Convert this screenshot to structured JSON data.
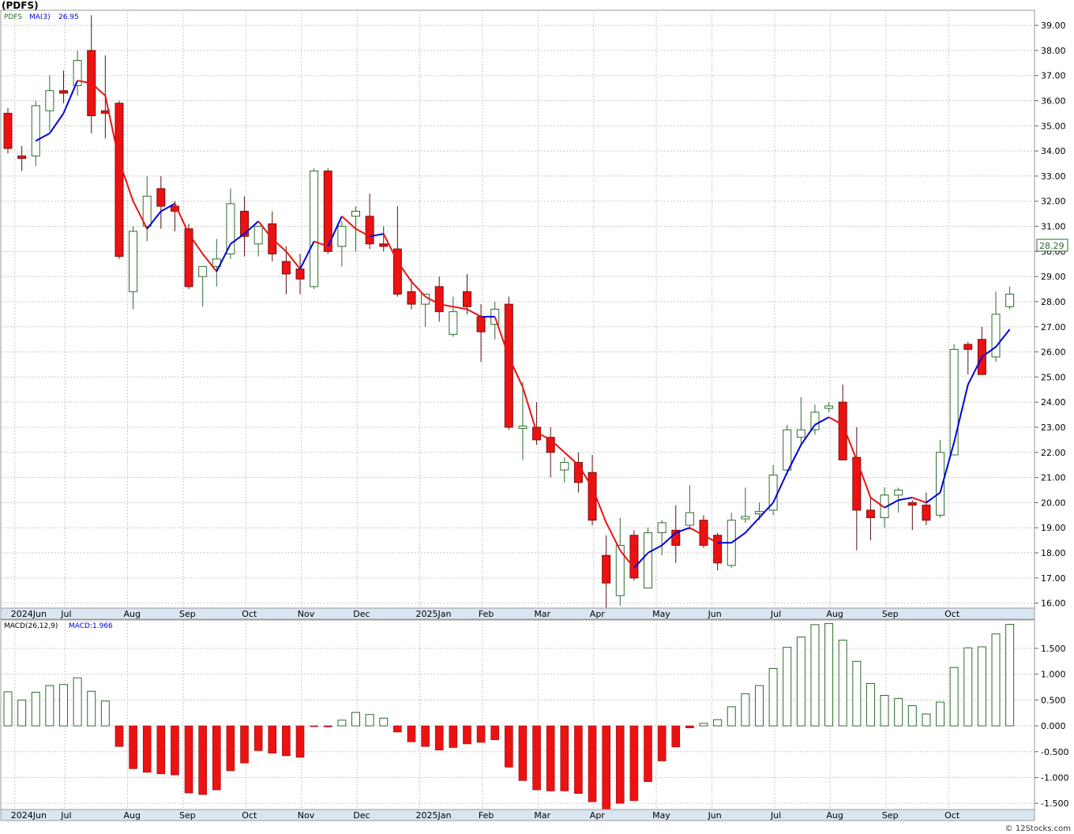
{
  "header": {
    "symbol_title": "(PDFS)",
    "legend_symbol": "PDFS",
    "legend_ma_label": "MA(3)",
    "legend_ma_value": "26.95",
    "last_price_label": "28.29",
    "macd_label": "MACD(26,12,9)",
    "macd_value_label": "MACD:1.966",
    "credit": "© 12Stocks.com"
  },
  "colors": {
    "up_candle_fill": "#ffffff",
    "up_candle_stroke": "#2e6b2e",
    "down_candle_fill": "#ee1111",
    "ma_up_color": "#0000dd",
    "ma_down_color": "#ee1111",
    "macd_pos_stroke": "#2e6b2e",
    "macd_neg_fill": "#ee1111",
    "grid": "#c8c8c8"
  },
  "chart_data": [
    {
      "type": "candlestick",
      "title": "(PDFS)",
      "interval": "weekly",
      "ylim": [
        15.8,
        39.6
      ],
      "y_ticks": [
        "16.00",
        "17.00",
        "18.00",
        "19.00",
        "20.00",
        "21.00",
        "22.00",
        "23.00",
        "24.00",
        "25.00",
        "26.00",
        "27.00",
        "28.00",
        "29.00",
        "30.00",
        "31.00",
        "32.00",
        "33.00",
        "34.00",
        "35.00",
        "36.00",
        "37.00",
        "38.00",
        "39.00"
      ],
      "x_labels": [
        {
          "label": "2024Jun",
          "week": 0.5
        },
        {
          "label": "Jul",
          "week": 4.1
        },
        {
          "label": "Aug",
          "week": 8.6
        },
        {
          "label": "Sep",
          "week": 12.6
        },
        {
          "label": "Oct",
          "week": 17.1
        },
        {
          "label": "Nov",
          "week": 21.1
        },
        {
          "label": "Dec",
          "week": 25.1
        },
        {
          "label": "2025Jan",
          "week": 29.6
        },
        {
          "label": "Feb",
          "week": 34.1
        },
        {
          "label": "Mar",
          "week": 38.1
        },
        {
          "label": "Apr",
          "week": 42.1
        },
        {
          "label": "May",
          "week": 46.6
        },
        {
          "label": "Jun",
          "week": 50.6
        },
        {
          "label": "Jul",
          "week": 55.1
        },
        {
          "label": "Aug",
          "week": 59.1
        },
        {
          "label": "Sep",
          "week": 63.1
        },
        {
          "label": "Oct",
          "week": 67.6
        }
      ],
      "candles": [
        {
          "o": 35.5,
          "h": 35.7,
          "l": 33.9,
          "c": 34.1
        },
        {
          "o": 33.8,
          "h": 34.2,
          "l": 33.2,
          "c": 33.7
        },
        {
          "o": 33.8,
          "h": 36.0,
          "l": 33.4,
          "c": 35.8
        },
        {
          "o": 35.6,
          "h": 37.0,
          "l": 34.8,
          "c": 36.4
        },
        {
          "o": 36.4,
          "h": 37.2,
          "l": 35.9,
          "c": 36.3
        },
        {
          "o": 36.6,
          "h": 38.0,
          "l": 36.2,
          "c": 37.6
        },
        {
          "o": 38.0,
          "h": 39.4,
          "l": 34.7,
          "c": 35.4
        },
        {
          "o": 35.6,
          "h": 37.8,
          "l": 34.5,
          "c": 35.5
        },
        {
          "o": 35.9,
          "h": 36.0,
          "l": 29.7,
          "c": 29.8
        },
        {
          "o": 28.4,
          "h": 31.0,
          "l": 27.7,
          "c": 30.8
        },
        {
          "o": 31.0,
          "h": 33.0,
          "l": 30.4,
          "c": 32.2
        },
        {
          "o": 32.5,
          "h": 33.0,
          "l": 30.9,
          "c": 31.8
        },
        {
          "o": 31.8,
          "h": 32.0,
          "l": 30.8,
          "c": 31.6
        },
        {
          "o": 30.9,
          "h": 31.1,
          "l": 28.5,
          "c": 28.6
        },
        {
          "o": 29.0,
          "h": 29.4,
          "l": 27.8,
          "c": 29.4
        },
        {
          "o": 29.4,
          "h": 30.5,
          "l": 28.6,
          "c": 29.7
        },
        {
          "o": 29.9,
          "h": 32.5,
          "l": 29.7,
          "c": 31.9
        },
        {
          "o": 31.6,
          "h": 32.2,
          "l": 29.8,
          "c": 30.6
        },
        {
          "o": 30.3,
          "h": 31.0,
          "l": 29.8,
          "c": 31.0
        },
        {
          "o": 31.1,
          "h": 31.6,
          "l": 29.6,
          "c": 29.9
        },
        {
          "o": 29.6,
          "h": 30.2,
          "l": 28.3,
          "c": 29.1
        },
        {
          "o": 29.3,
          "h": 29.9,
          "l": 28.3,
          "c": 28.9
        },
        {
          "o": 28.6,
          "h": 33.3,
          "l": 28.5,
          "c": 33.2
        },
        {
          "o": 33.2,
          "h": 33.3,
          "l": 29.9,
          "c": 30.0
        },
        {
          "o": 30.2,
          "h": 31.2,
          "l": 29.4,
          "c": 31.0
        },
        {
          "o": 31.4,
          "h": 31.8,
          "l": 30.0,
          "c": 31.6
        },
        {
          "o": 31.4,
          "h": 32.3,
          "l": 30.1,
          "c": 30.3
        },
        {
          "o": 30.3,
          "h": 31.0,
          "l": 30.0,
          "c": 30.2
        },
        {
          "o": 30.1,
          "h": 31.8,
          "l": 28.2,
          "c": 28.3
        },
        {
          "o": 28.4,
          "h": 28.9,
          "l": 27.7,
          "c": 27.9
        },
        {
          "o": 27.9,
          "h": 28.3,
          "l": 27.0,
          "c": 28.3
        },
        {
          "o": 28.6,
          "h": 29.0,
          "l": 27.2,
          "c": 27.6
        },
        {
          "o": 26.7,
          "h": 28.2,
          "l": 26.6,
          "c": 27.6
        },
        {
          "o": 28.4,
          "h": 29.1,
          "l": 27.5,
          "c": 27.8
        },
        {
          "o": 27.4,
          "h": 27.9,
          "l": 25.6,
          "c": 26.8
        },
        {
          "o": 27.1,
          "h": 28.0,
          "l": 26.5,
          "c": 27.7
        },
        {
          "o": 27.9,
          "h": 28.2,
          "l": 22.9,
          "c": 23.0
        },
        {
          "o": 23.0,
          "h": 24.8,
          "l": 21.7,
          "c": 23.0
        },
        {
          "o": 23.0,
          "h": 24.0,
          "l": 22.3,
          "c": 22.5
        },
        {
          "o": 22.6,
          "h": 23.0,
          "l": 21.0,
          "c": 22.0
        },
        {
          "o": 21.3,
          "h": 21.8,
          "l": 20.8,
          "c": 21.6
        },
        {
          "o": 21.6,
          "h": 22.0,
          "l": 20.4,
          "c": 20.8
        },
        {
          "o": 21.2,
          "h": 21.9,
          "l": 19.1,
          "c": 19.3
        },
        {
          "o": 17.9,
          "h": 18.7,
          "l": 15.8,
          "c": 16.8
        },
        {
          "o": 16.3,
          "h": 19.4,
          "l": 15.9,
          "c": 18.3
        },
        {
          "o": 18.7,
          "h": 18.9,
          "l": 16.9,
          "c": 17.0
        },
        {
          "o": 16.6,
          "h": 19.0,
          "l": 16.6,
          "c": 18.8
        },
        {
          "o": 18.8,
          "h": 19.3,
          "l": 17.9,
          "c": 19.2
        },
        {
          "o": 18.9,
          "h": 19.9,
          "l": 17.6,
          "c": 18.3
        },
        {
          "o": 19.1,
          "h": 20.7,
          "l": 18.9,
          "c": 19.6
        },
        {
          "o": 19.3,
          "h": 19.5,
          "l": 18.2,
          "c": 18.3
        },
        {
          "o": 18.7,
          "h": 18.8,
          "l": 17.3,
          "c": 17.6
        },
        {
          "o": 17.5,
          "h": 19.6,
          "l": 17.4,
          "c": 19.3
        },
        {
          "o": 19.4,
          "h": 20.6,
          "l": 19.2,
          "c": 19.4
        },
        {
          "o": 19.6,
          "h": 20.0,
          "l": 19.3,
          "c": 19.6
        },
        {
          "o": 19.7,
          "h": 21.5,
          "l": 19.5,
          "c": 21.1
        },
        {
          "o": 21.3,
          "h": 23.1,
          "l": 21.1,
          "c": 22.9
        },
        {
          "o": 22.6,
          "h": 24.2,
          "l": 22.3,
          "c": 22.9
        },
        {
          "o": 22.9,
          "h": 23.9,
          "l": 22.7,
          "c": 23.6
        },
        {
          "o": 23.8,
          "h": 24.0,
          "l": 23.6,
          "c": 23.8
        },
        {
          "o": 24.0,
          "h": 24.7,
          "l": 21.7,
          "c": 21.7
        },
        {
          "o": 21.8,
          "h": 23.0,
          "l": 18.1,
          "c": 19.7
        },
        {
          "o": 19.7,
          "h": 20.2,
          "l": 18.5,
          "c": 19.4
        },
        {
          "o": 19.4,
          "h": 20.6,
          "l": 19.0,
          "c": 20.3
        },
        {
          "o": 20.3,
          "h": 20.6,
          "l": 19.6,
          "c": 20.5
        },
        {
          "o": 20.0,
          "h": 20.1,
          "l": 18.9,
          "c": 19.9
        },
        {
          "o": 19.9,
          "h": 20.4,
          "l": 19.1,
          "c": 19.3
        },
        {
          "o": 19.5,
          "h": 22.5,
          "l": 19.4,
          "c": 22.0
        },
        {
          "o": 21.9,
          "h": 26.3,
          "l": 21.9,
          "c": 26.1
        },
        {
          "o": 26.3,
          "h": 26.4,
          "l": 25.1,
          "c": 26.1
        },
        {
          "o": 26.5,
          "h": 27.0,
          "l": 25.1,
          "c": 25.1
        },
        {
          "o": 25.8,
          "h": 28.4,
          "l": 25.6,
          "c": 27.5
        },
        {
          "o": 27.8,
          "h": 28.6,
          "l": 27.7,
          "c": 28.3
        }
      ],
      "series": [
        {
          "name": "MA(3)",
          "values": [
            null,
            null,
            34.4,
            34.7,
            35.5,
            36.8,
            36.7,
            36.2,
            33.6,
            32.0,
            30.9,
            31.6,
            31.9,
            30.7,
            29.9,
            29.2,
            30.3,
            30.7,
            31.2,
            30.5,
            30.0,
            29.3,
            30.4,
            30.2,
            31.4,
            30.9,
            30.6,
            30.7,
            29.6,
            28.8,
            28.2,
            27.9,
            27.8,
            27.7,
            27.4,
            27.4,
            25.8,
            24.6,
            22.8,
            22.5,
            22.0,
            21.5,
            20.6,
            19.2,
            18.1,
            17.4,
            18.0,
            18.3,
            18.8,
            19.0,
            18.7,
            18.4,
            18.4,
            18.8,
            19.4,
            20.0,
            21.2,
            22.3,
            23.1,
            23.4,
            23.1,
            21.7,
            20.2,
            19.8,
            20.1,
            20.2,
            20.0,
            20.4,
            22.4,
            24.7,
            25.8,
            26.2,
            26.9
          ]
        }
      ]
    },
    {
      "type": "bar",
      "title": "MACD(26,12,9)",
      "ylim": [
        -1.62,
        2.05
      ],
      "y_ticks": [
        "1.500",
        "1.000",
        "0.500",
        "0.000",
        "-0.500",
        "-1.000",
        "-1.500"
      ],
      "series": [
        {
          "name": "MACD",
          "values": [
            0.66,
            0.5,
            0.65,
            0.78,
            0.8,
            0.93,
            0.67,
            0.48,
            -0.4,
            -0.83,
            -0.9,
            -0.93,
            -0.95,
            -1.3,
            -1.33,
            -1.24,
            -0.87,
            -0.72,
            -0.48,
            -0.53,
            -0.58,
            -0.61,
            -0.01,
            -0.02,
            0.11,
            0.26,
            0.22,
            0.15,
            -0.12,
            -0.31,
            -0.4,
            -0.47,
            -0.42,
            -0.35,
            -0.32,
            -0.27,
            -0.8,
            -1.06,
            -1.24,
            -1.26,
            -1.26,
            -1.31,
            -1.47,
            -1.65,
            -1.5,
            -1.45,
            -1.08,
            -0.68,
            -0.41,
            -0.04,
            0.05,
            0.12,
            0.37,
            0.62,
            0.78,
            1.11,
            1.52,
            1.72,
            1.96,
            1.98,
            1.66,
            1.25,
            0.82,
            0.59,
            0.53,
            0.39,
            0.23,
            0.46,
            1.13,
            1.51,
            1.53,
            1.78,
            1.966
          ]
        }
      ],
      "x_labels": [
        "2024Jun",
        "Jul",
        "Aug",
        "Sep",
        "Oct",
        "Nov",
        "Dec",
        "2025Jan",
        "Feb",
        "Mar",
        "Apr",
        "May",
        "Jun",
        "Jul",
        "Aug",
        "Sep",
        "Oct"
      ]
    }
  ]
}
